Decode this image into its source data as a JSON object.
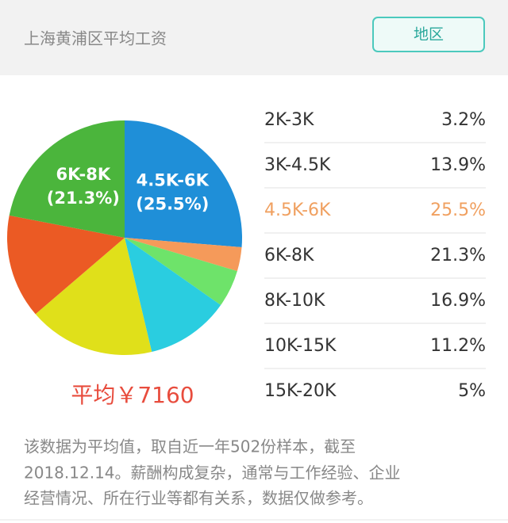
{
  "header": {
    "title": "上海黄浦区平均工资",
    "button": "地区"
  },
  "chart_data": {
    "type": "pie",
    "categories": [
      "2K-3K",
      "3K-4.5K",
      "4.5K-6K",
      "6K-8K",
      "8K-10K",
      "10K-15K",
      "15K-20K"
    ],
    "values": [
      3.2,
      13.9,
      25.5,
      21.3,
      16.9,
      11.2,
      5
    ],
    "value_labels": [
      "3.2%",
      "13.9%",
      "25.5%",
      "21.3%",
      "16.9%",
      "11.2%",
      "5%"
    ],
    "inner_labels": [
      null,
      null,
      "(25.5%)",
      "(21.3%)",
      null,
      null,
      null
    ],
    "colors": [
      "#f59a5a",
      "#eb5a24",
      "#1f8fd8",
      "#4bb53c",
      "#e0e01a",
      "#2acde0",
      "#6ee36a"
    ],
    "highlight_color": "#f0a060"
  },
  "average": "平均￥7160",
  "note": [
    "该数据为平均值，取自近一年502份样本，截至",
    "2018.12.14。薪酬构成复杂，通常与工作经验、企业",
    "经营情况、所在行业等都有关系，数据仅做参考。"
  ]
}
